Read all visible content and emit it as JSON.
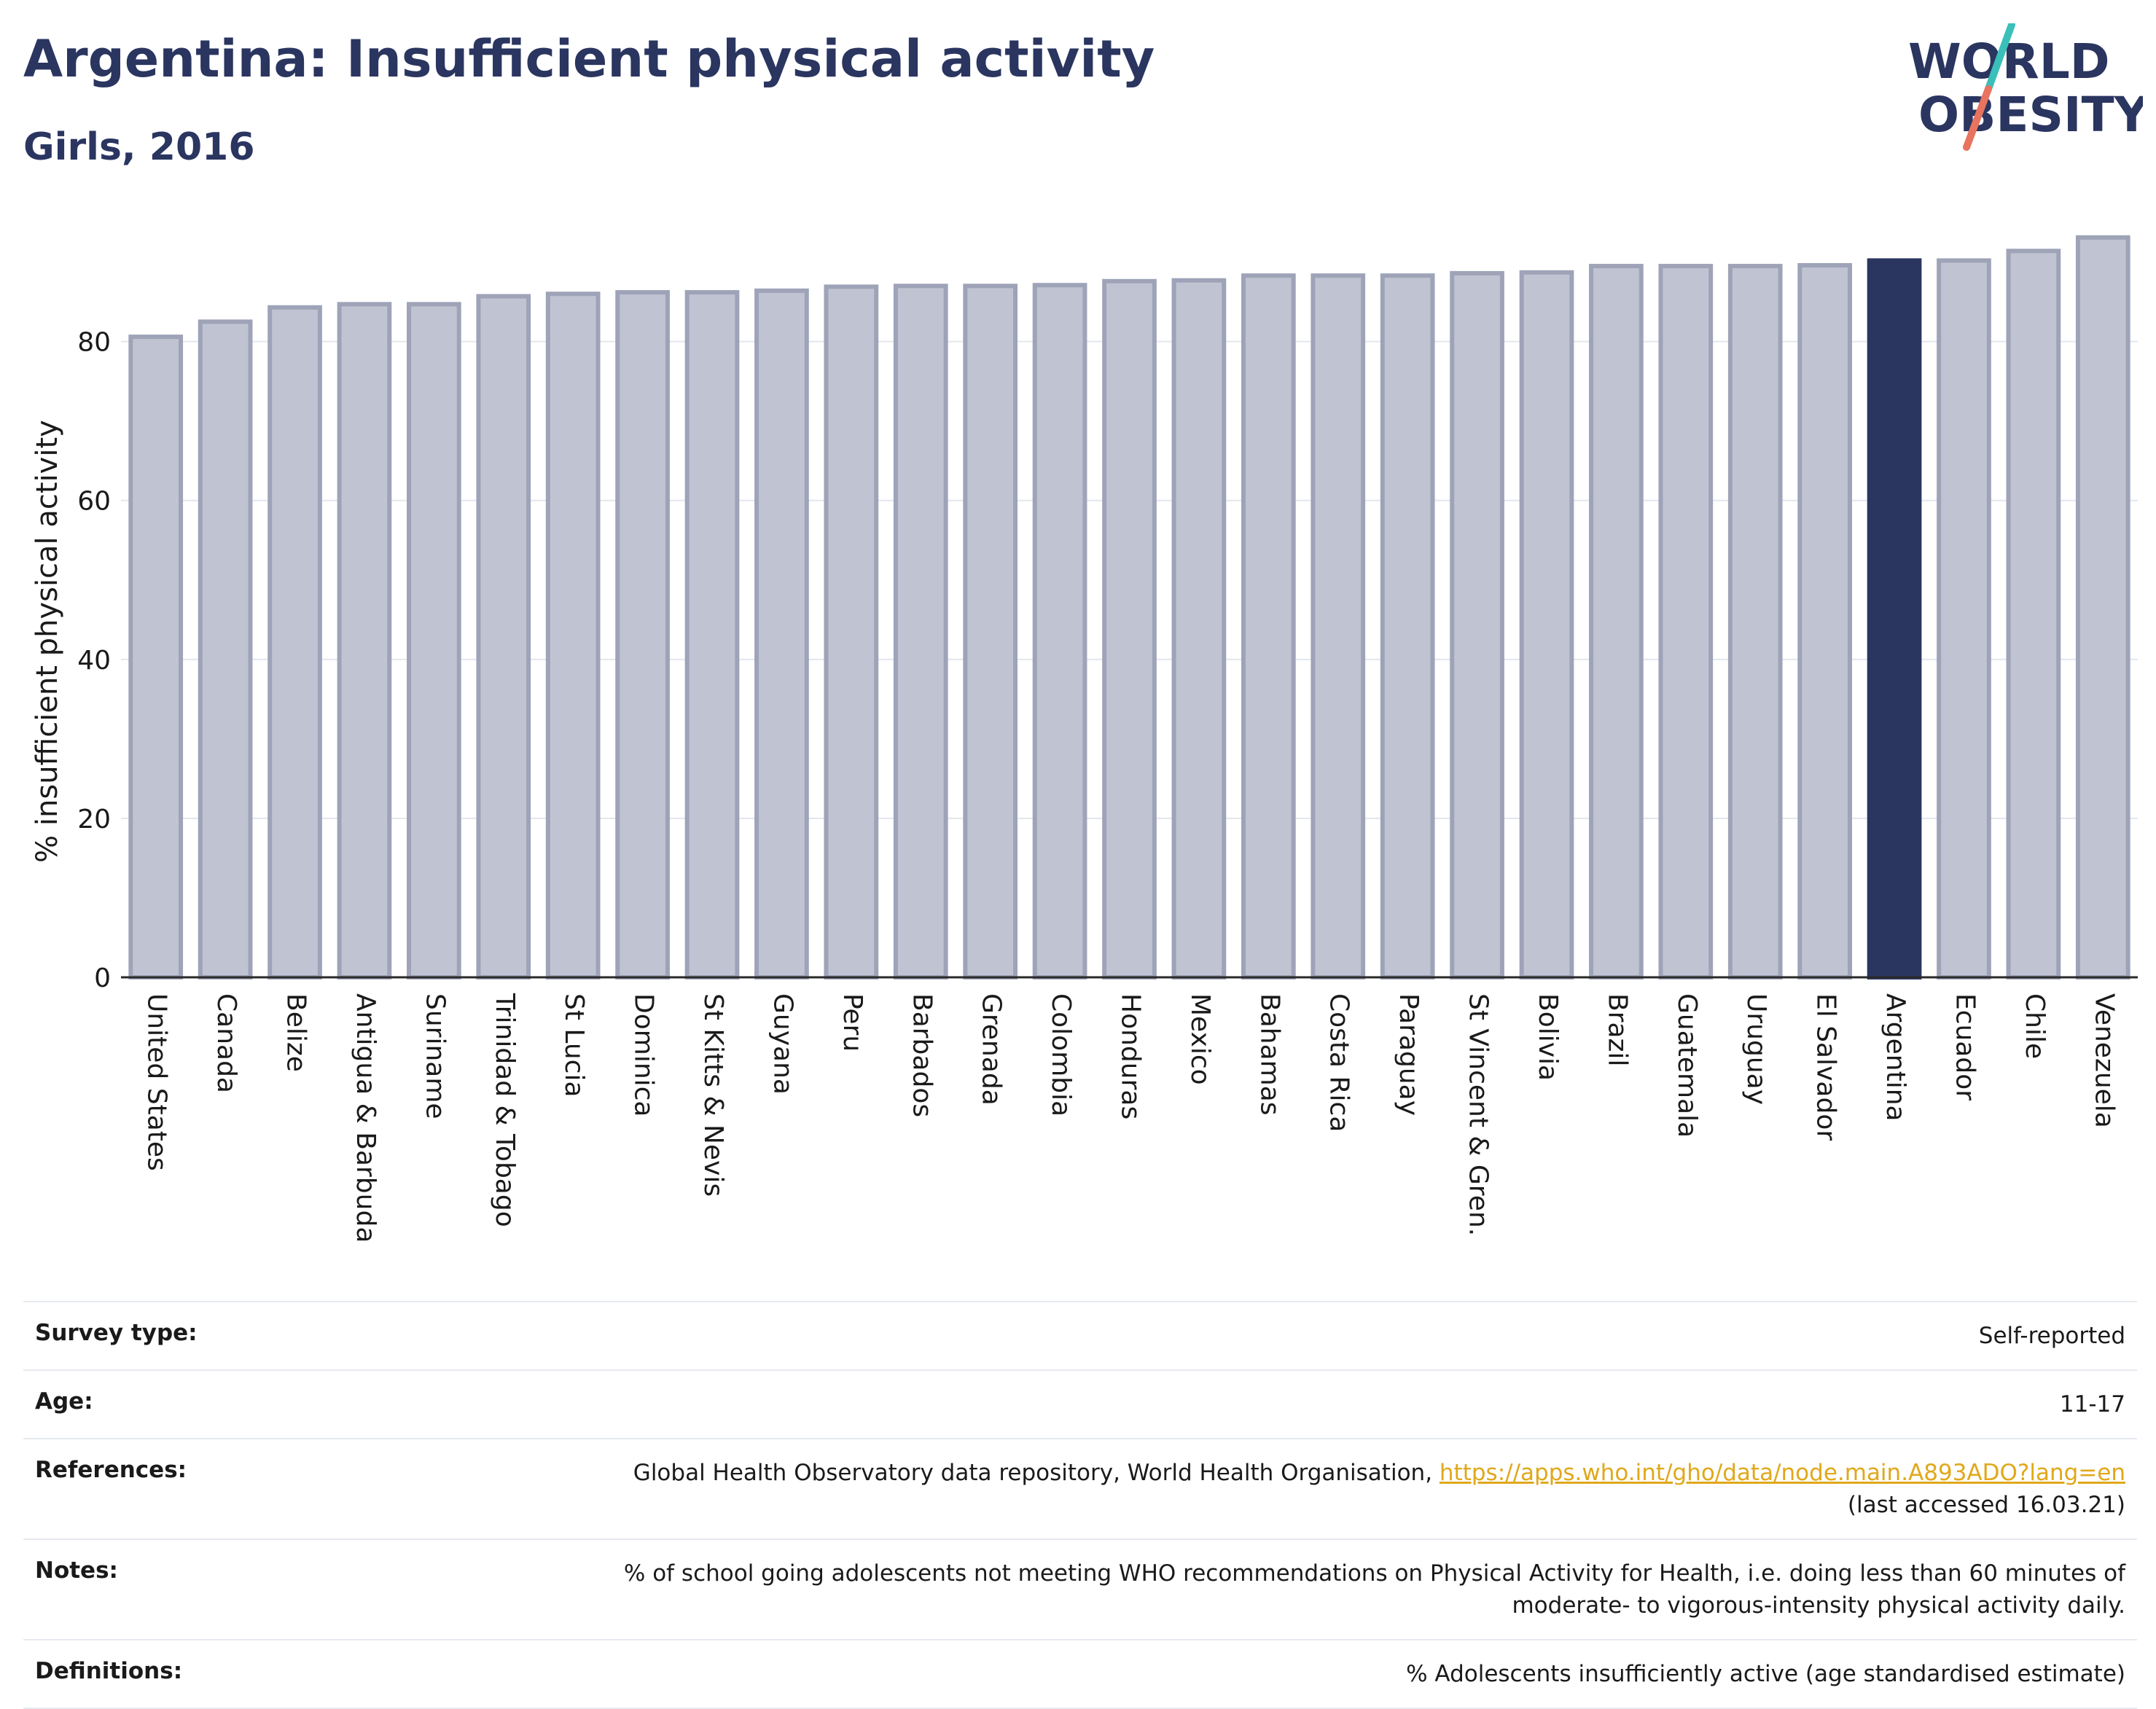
{
  "header": {
    "title": "Argentina: Insufficient physical activity",
    "subtitle": "Girls, 2016"
  },
  "logo": {
    "line1": "WORLD",
    "line2": "OBESITY"
  },
  "chart_data": {
    "type": "bar",
    "title": "Argentina: Insufficient physical activity",
    "subtitle": "Girls, 2016",
    "xlabel": "",
    "ylabel": "% insufficient physical activity",
    "ylim": [
      0,
      94
    ],
    "yticks": [
      0,
      20,
      40,
      60,
      80
    ],
    "grid": true,
    "highlight": "Argentina",
    "colors": {
      "bar": "#c0c3d1",
      "bar_border": "#9ea3b8",
      "highlight": "#2a3560"
    },
    "categories": [
      "United States",
      "Canada",
      "Belize",
      "Antigua & Barbuda",
      "Suriname",
      "Trinidad & Tobago",
      "St Lucia",
      "Dominica",
      "St Kitts & Nevis",
      "Guyana",
      "Peru",
      "Barbados",
      "Grenada",
      "Colombia",
      "Honduras",
      "Mexico",
      "Bahamas",
      "Costa Rica",
      "Paraguay",
      "St Vincent & Gren.",
      "Bolivia",
      "Brazil",
      "Guatemala",
      "Uruguay",
      "El Salvador",
      "Argentina",
      "Ecuador",
      "Chile",
      "Venezuela"
    ],
    "values": [
      80.6,
      82.5,
      84.3,
      84.7,
      84.7,
      85.7,
      86.0,
      86.2,
      86.2,
      86.4,
      86.9,
      87.0,
      87.0,
      87.1,
      87.6,
      87.7,
      88.3,
      88.3,
      88.3,
      88.6,
      88.7,
      89.5,
      89.5,
      89.5,
      89.6,
      90.2,
      90.2,
      91.4,
      93.1
    ]
  },
  "meta": {
    "survey_type_label": "Survey type:",
    "survey_type_value": "Self-reported",
    "age_label": "Age:",
    "age_value": "11-17",
    "references_label": "References:",
    "references_text": "Global Health Observatory data repository, World Health Organisation, ",
    "references_link": "https://apps.who.int/gho/data/node.main.A893ADO?lang=en",
    "references_accessed": "(last accessed 16.03.21)",
    "notes_label": "Notes:",
    "notes_line1": "% of school going adolescents not meeting WHO recommendations on Physical Activity for Health, i.e. doing less than 60 minutes of",
    "notes_line2": "moderate- to vigorous-intensity physical activity daily.",
    "definitions_label": "Definitions:",
    "definitions_value": "% Adolescents insufficiently active (age standardised estimate)"
  }
}
